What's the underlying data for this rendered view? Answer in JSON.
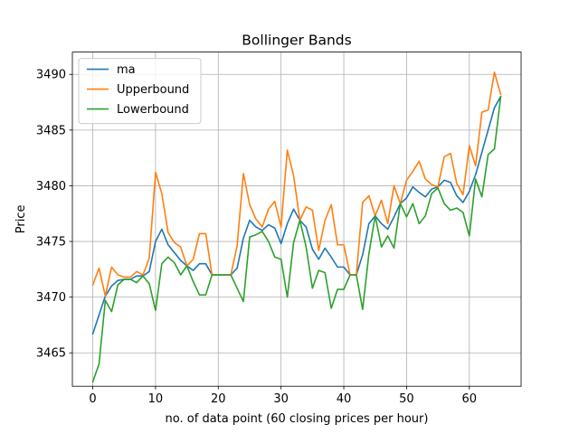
{
  "chart_data": {
    "type": "line",
    "title": "Bollinger Bands",
    "xlabel": "no. of data point (60 closing prices per hour)",
    "ylabel": "Price",
    "xlim": [
      -3.25,
      68.25
    ],
    "ylim": [
      3462.0,
      3492.0
    ],
    "x_ticks": [
      0,
      10,
      20,
      30,
      40,
      50,
      60
    ],
    "y_ticks": [
      3465,
      3470,
      3475,
      3480,
      3485,
      3490
    ],
    "grid": true,
    "legend_position": "upper left",
    "series": [
      {
        "name": "ma",
        "color": "#1f77b4",
        "values": [
          3466.7,
          3468.4,
          3470.1,
          3471.0,
          3471.5,
          3471.6,
          3471.6,
          3471.9,
          3471.9,
          3472.3,
          3475.0,
          3476.1,
          3474.7,
          3474.0,
          3473.3,
          3472.8,
          3472.4,
          3473.0,
          3473.0,
          3472.0,
          3472.0,
          3472.0,
          3472.0,
          3472.6,
          3475.3,
          3476.9,
          3476.3,
          3476.0,
          3476.5,
          3476.2,
          3474.8,
          3476.6,
          3477.9,
          3476.9,
          3476.3,
          3474.3,
          3473.4,
          3474.4,
          3473.6,
          3472.7,
          3472.7,
          3472.0,
          3472.0,
          3473.8,
          3476.6,
          3477.3,
          3476.6,
          3476.1,
          3477.2,
          3478.4,
          3478.9,
          3479.9,
          3479.4,
          3479.0,
          3479.7,
          3479.9,
          3480.5,
          3480.3,
          3479.1,
          3478.5,
          3479.5,
          3481.0,
          3483.0,
          3485.0,
          3487.0,
          3488.0
        ]
      },
      {
        "name": "Upperbound",
        "color": "#ff7f0e",
        "values": [
          3471.1,
          3472.6,
          3470.1,
          3472.7,
          3472.0,
          3471.8,
          3471.8,
          3472.3,
          3472.0,
          3473.5,
          3481.2,
          3479.3,
          3475.8,
          3474.9,
          3474.5,
          3472.8,
          3473.4,
          3475.7,
          3475.7,
          3472.0,
          3472.0,
          3472.0,
          3472.0,
          3474.6,
          3481.1,
          3478.3,
          3477.0,
          3476.3,
          3477.9,
          3478.6,
          3476.3,
          3483.2,
          3480.9,
          3476.9,
          3478.1,
          3477.8,
          3474.2,
          3476.9,
          3478.3,
          3474.7,
          3474.7,
          3472.0,
          3472.0,
          3478.5,
          3479.1,
          3477.3,
          3478.7,
          3476.6,
          3480.0,
          3478.4,
          3480.5,
          3481.3,
          3482.2,
          3480.6,
          3480.1,
          3479.9,
          3482.6,
          3482.9,
          3480.2,
          3479.2,
          3483.6,
          3481.8,
          3486.6,
          3486.8,
          3490.2,
          3488.2
        ]
      },
      {
        "name": "Lowerbound",
        "color": "#2ca02c",
        "values": [
          3462.4,
          3464.0,
          3469.7,
          3468.7,
          3471.1,
          3471.6,
          3471.6,
          3471.3,
          3471.9,
          3471.2,
          3468.8,
          3473.0,
          3473.6,
          3473.1,
          3472.0,
          3472.8,
          3471.4,
          3470.2,
          3470.2,
          3472.0,
          3472.0,
          3472.0,
          3472.0,
          3470.8,
          3469.6,
          3475.4,
          3475.6,
          3475.9,
          3475.0,
          3473.6,
          3473.4,
          3470.0,
          3474.9,
          3476.9,
          3474.5,
          3470.8,
          3472.4,
          3472.2,
          3469.0,
          3470.7,
          3470.7,
          3472.0,
          3472.0,
          3468.9,
          3473.9,
          3477.3,
          3474.5,
          3475.5,
          3474.4,
          3478.4,
          3477.2,
          3478.4,
          3476.6,
          3477.3,
          3479.3,
          3479.8,
          3478.4,
          3477.8,
          3478.0,
          3477.6,
          3475.5,
          3480.6,
          3479.0,
          3482.8,
          3483.3,
          3488.0
        ]
      }
    ]
  }
}
